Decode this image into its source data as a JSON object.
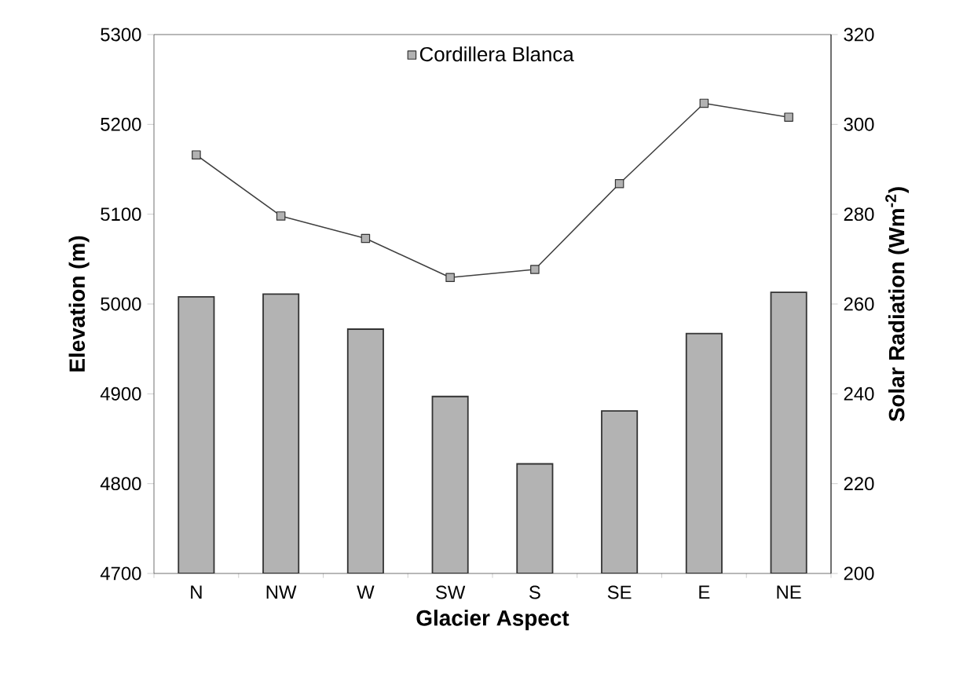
{
  "chart_data": {
    "type": "bar",
    "xlabel": "Glacier Aspect",
    "ylabel": "Elevation (m)",
    "y2label": "Solar Radiation (Wm$^{-2}$)",
    "categories": [
      "N",
      "NW",
      "W",
      "SW",
      "S",
      "SE",
      "E",
      "NE"
    ],
    "series": [
      {
        "color": "#b3b3b3",
        "values": [
          5008,
          5011,
          4972,
          4897,
          4822,
          4881,
          4967,
          5013
        ]
      },
      {
        "type": "line",
        "axis": "y2",
        "name": "Cordillera Blanca",
        "color": "#404040",
        "marker": "square",
        "values": [
          293.2,
          279.6,
          274.6,
          265.9,
          267.7,
          286.8,
          304.7,
          301.6
        ]
      }
    ],
    "ylim": [
      4700,
      5300
    ],
    "yticks": [
      4700,
      4800,
      4900,
      5000,
      5100,
      5200,
      5300
    ],
    "y2lim": [
      200,
      320
    ],
    "y2ticks": [
      200,
      220,
      240,
      260,
      280,
      300,
      320
    ],
    "grid": false,
    "legend": "top"
  }
}
